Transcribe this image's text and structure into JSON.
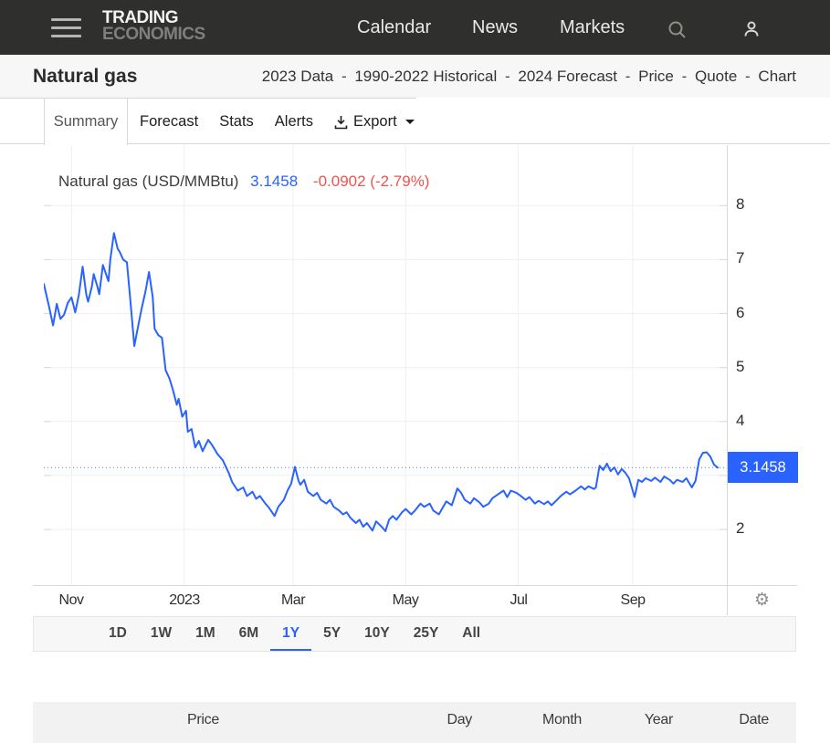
{
  "navbar": {
    "logo_line1": "TRADING",
    "logo_line2": "ECONOMICS",
    "links": [
      "Calendar",
      "News",
      "Markets"
    ]
  },
  "header": {
    "title": "Natural gas",
    "breadcrumbs": [
      "2023 Data",
      "1990-2022 Historical",
      "2024 Forecast",
      "Price",
      "Quote",
      "Chart"
    ],
    "separator": "-"
  },
  "tabs": {
    "active": "Summary",
    "items": [
      "Forecast",
      "Stats",
      "Alerts"
    ],
    "export_label": "Export"
  },
  "chart_data": {
    "type": "line",
    "title": "Natural gas (USD/MMBtu)",
    "last_price": "3.1458",
    "change_text": "-0.0902 (-2.79%)",
    "current_value": 3.1458,
    "line_color": "#2962FF",
    "down_color": "#EF5350",
    "grid": true,
    "legend": false,
    "y_axis": {
      "ticks_shown": [
        8,
        7,
        6,
        5,
        4,
        2
      ],
      "all_levels": [
        2,
        3,
        4,
        5,
        6,
        7,
        8
      ],
      "ylim": [
        0.97,
        9.12
      ],
      "current_label": "3.1458"
    },
    "x_axis": {
      "unit": "days",
      "xlim": [
        0,
        365
      ],
      "ticks": [
        {
          "label": "Nov",
          "day": 15
        },
        {
          "label": "2023",
          "day": 76
        },
        {
          "label": "Mar",
          "day": 135
        },
        {
          "label": "May",
          "day": 196
        },
        {
          "label": "Jul",
          "day": 257
        },
        {
          "label": "Sep",
          "day": 319
        }
      ]
    },
    "points": [
      [
        0,
        6.55
      ],
      [
        3,
        6.1
      ],
      [
        5,
        5.78
      ],
      [
        7,
        6.18
      ],
      [
        9,
        5.9
      ],
      [
        11,
        5.98
      ],
      [
        13,
        6.2
      ],
      [
        15,
        6.3
      ],
      [
        17,
        6.02
      ],
      [
        19,
        6.35
      ],
      [
        21,
        6.87
      ],
      [
        23,
        6.35
      ],
      [
        24,
        6.22
      ],
      [
        26,
        6.5
      ],
      [
        27,
        6.73
      ],
      [
        29,
        6.5
      ],
      [
        30,
        6.36
      ],
      [
        32,
        6.9
      ],
      [
        34,
        6.7
      ],
      [
        35,
        6.6
      ],
      [
        36,
        7.0
      ],
      [
        38,
        7.49
      ],
      [
        40,
        7.2
      ],
      [
        41,
        7.15
      ],
      [
        43,
        7.0
      ],
      [
        45,
        6.95
      ],
      [
        47,
        6.2
      ],
      [
        49,
        5.4
      ],
      [
        51,
        5.75
      ],
      [
        53,
        6.1
      ],
      [
        55,
        6.4
      ],
      [
        57,
        6.77
      ],
      [
        59,
        6.3
      ],
      [
        60,
        5.72
      ],
      [
        62,
        5.6
      ],
      [
        64,
        5.55
      ],
      [
        66,
        4.95
      ],
      [
        68,
        4.8
      ],
      [
        70,
        4.58
      ],
      [
        72,
        4.31
      ],
      [
        73,
        4.42
      ],
      [
        75,
        4.09
      ],
      [
        77,
        4.2
      ],
      [
        78,
        3.81
      ],
      [
        80,
        3.86
      ],
      [
        82,
        3.52
      ],
      [
        84,
        3.64
      ],
      [
        86,
        3.45
      ],
      [
        89,
        3.66
      ],
      [
        91,
        3.57
      ],
      [
        94,
        3.4
      ],
      [
        97,
        3.28
      ],
      [
        100,
        3.06
      ],
      [
        102,
        2.88
      ],
      [
        105,
        2.72
      ],
      [
        108,
        2.78
      ],
      [
        110,
        2.62
      ],
      [
        113,
        2.7
      ],
      [
        115,
        2.57
      ],
      [
        117,
        2.62
      ],
      [
        120,
        2.48
      ],
      [
        122,
        2.4
      ],
      [
        125,
        2.25
      ],
      [
        127,
        2.42
      ],
      [
        130,
        2.55
      ],
      [
        132,
        2.72
      ],
      [
        134,
        2.85
      ],
      [
        136,
        3.16
      ],
      [
        138,
        2.9
      ],
      [
        139,
        2.83
      ],
      [
        141,
        2.92
      ],
      [
        143,
        2.7
      ],
      [
        146,
        2.62
      ],
      [
        148,
        2.68
      ],
      [
        150,
        2.55
      ],
      [
        153,
        2.48
      ],
      [
        155,
        2.55
      ],
      [
        157,
        2.42
      ],
      [
        160,
        2.35
      ],
      [
        162,
        2.28
      ],
      [
        164,
        2.32
      ],
      [
        166,
        2.22
      ],
      [
        169,
        2.12
      ],
      [
        171,
        2.18
      ],
      [
        173,
        2.05
      ],
      [
        175,
        2.12
      ],
      [
        178,
        1.98
      ],
      [
        180,
        2.15
      ],
      [
        183,
        2.05
      ],
      [
        185,
        1.97
      ],
      [
        187,
        2.18
      ],
      [
        189,
        2.25
      ],
      [
        191,
        2.18
      ],
      [
        194,
        2.32
      ],
      [
        196,
        2.38
      ],
      [
        199,
        2.28
      ],
      [
        201,
        2.35
      ],
      [
        204,
        2.48
      ],
      [
        206,
        2.42
      ],
      [
        209,
        2.48
      ],
      [
        211,
        2.35
      ],
      [
        214,
        2.28
      ],
      [
        216,
        2.4
      ],
      [
        218,
        2.52
      ],
      [
        221,
        2.45
      ],
      [
        224,
        2.76
      ],
      [
        226,
        2.68
      ],
      [
        228,
        2.55
      ],
      [
        231,
        2.48
      ],
      [
        233,
        2.58
      ],
      [
        236,
        2.5
      ],
      [
        238,
        2.42
      ],
      [
        241,
        2.48
      ],
      [
        243,
        2.58
      ],
      [
        246,
        2.65
      ],
      [
        249,
        2.72
      ],
      [
        251,
        2.6
      ],
      [
        253,
        2.72
      ],
      [
        256,
        2.68
      ],
      [
        258,
        2.63
      ],
      [
        261,
        2.55
      ],
      [
        263,
        2.6
      ],
      [
        266,
        2.48
      ],
      [
        268,
        2.53
      ],
      [
        271,
        2.47
      ],
      [
        273,
        2.52
      ],
      [
        275,
        2.45
      ],
      [
        278,
        2.55
      ],
      [
        280,
        2.62
      ],
      [
        283,
        2.7
      ],
      [
        285,
        2.65
      ],
      [
        288,
        2.72
      ],
      [
        291,
        2.8
      ],
      [
        293,
        2.74
      ],
      [
        295,
        2.8
      ],
      [
        298,
        2.75
      ],
      [
        299,
        2.78
      ],
      [
        301,
        3.18
      ],
      [
        303,
        3.1
      ],
      [
        305,
        3.22
      ],
      [
        307,
        3.08
      ],
      [
        309,
        3.15
      ],
      [
        311,
        3.02
      ],
      [
        313,
        3.12
      ],
      [
        315,
        3.05
      ],
      [
        317,
        2.95
      ],
      [
        320,
        2.6
      ],
      [
        322,
        2.92
      ],
      [
        324,
        2.88
      ],
      [
        326,
        2.95
      ],
      [
        329,
        2.9
      ],
      [
        331,
        2.96
      ],
      [
        334,
        2.88
      ],
      [
        336,
        2.98
      ],
      [
        339,
        2.92
      ],
      [
        341,
        2.85
      ],
      [
        343,
        2.92
      ],
      [
        346,
        2.88
      ],
      [
        348,
        2.95
      ],
      [
        351,
        2.78
      ],
      [
        353,
        2.9
      ],
      [
        355,
        3.3
      ],
      [
        357,
        3.42
      ],
      [
        359,
        3.43
      ],
      [
        361,
        3.35
      ],
      [
        363,
        3.2
      ],
      [
        365,
        3.1458
      ]
    ]
  },
  "ranges": {
    "items": [
      "1D",
      "1W",
      "1M",
      "6M",
      "1Y",
      "5Y",
      "10Y",
      "25Y",
      "All"
    ],
    "active": "1Y"
  },
  "table": {
    "headers": [
      "Price",
      "Day",
      "Month",
      "Year",
      "Date"
    ]
  },
  "colors": {
    "navbar_bg": "#2f2f2d",
    "accent_blue": "#2962FF",
    "negative_red": "#EF5350",
    "grid": "#efefef",
    "border": "#d8d8d8"
  }
}
